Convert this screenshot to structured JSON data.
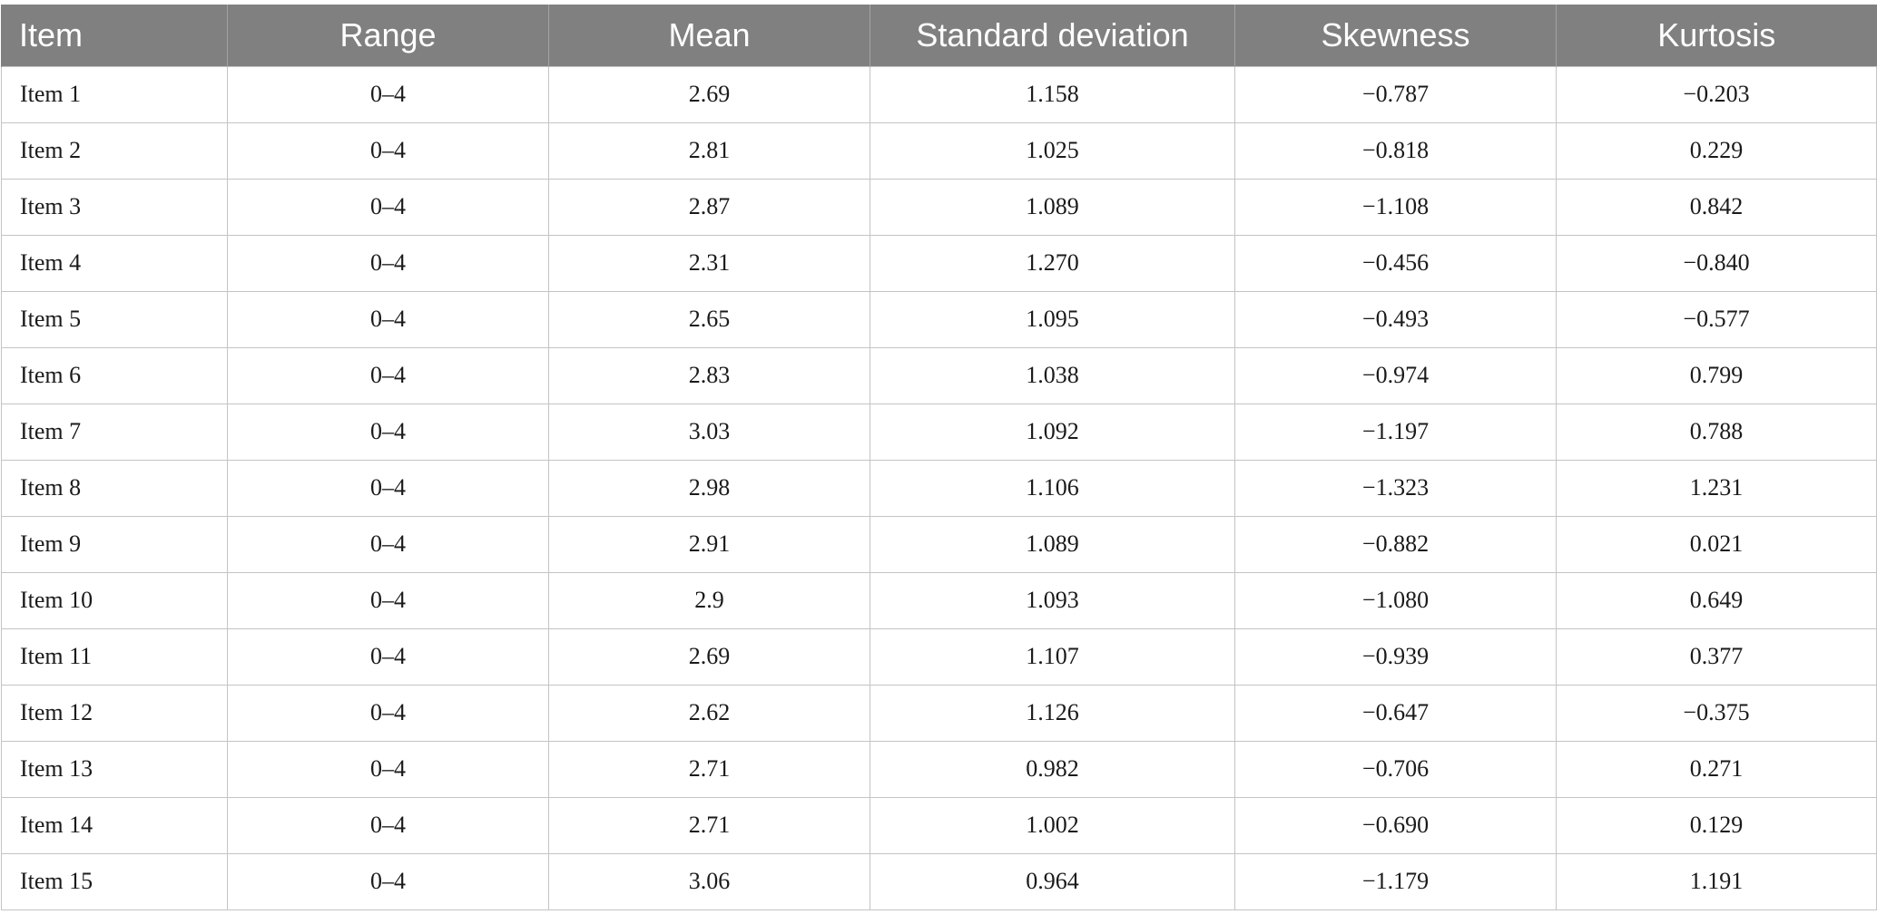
{
  "table": {
    "headers": [
      "Item",
      "Range",
      "Mean",
      "Standard deviation",
      "Skewness",
      "Kurtosis"
    ],
    "rows": [
      [
        "Item 1",
        "0–4",
        "2.69",
        "1.158",
        "−0.787",
        "−0.203"
      ],
      [
        "Item 2",
        "0–4",
        "2.81",
        "1.025",
        "−0.818",
        "0.229"
      ],
      [
        "Item 3",
        "0–4",
        "2.87",
        "1.089",
        "−1.108",
        "0.842"
      ],
      [
        "Item 4",
        "0–4",
        "2.31",
        "1.270",
        "−0.456",
        "−0.840"
      ],
      [
        "Item 5",
        "0–4",
        "2.65",
        "1.095",
        "−0.493",
        "−0.577"
      ],
      [
        "Item 6",
        "0–4",
        "2.83",
        "1.038",
        "−0.974",
        "0.799"
      ],
      [
        "Item 7",
        "0–4",
        "3.03",
        "1.092",
        "−1.197",
        "0.788"
      ],
      [
        "Item 8",
        "0–4",
        "2.98",
        "1.106",
        "−1.323",
        "1.231"
      ],
      [
        "Item 9",
        "0–4",
        "2.91",
        "1.089",
        "−0.882",
        "0.021"
      ],
      [
        "Item 10",
        "0–4",
        "2.9",
        "1.093",
        "−1.080",
        "0.649"
      ],
      [
        "Item 11",
        "0–4",
        "2.69",
        "1.107",
        "−0.939",
        "0.377"
      ],
      [
        "Item 12",
        "0–4",
        "2.62",
        "1.126",
        "−0.647",
        "−0.375"
      ],
      [
        "Item 13",
        "0–4",
        "2.71",
        "0.982",
        "−0.706",
        "0.271"
      ],
      [
        "Item 14",
        "0–4",
        "2.71",
        "1.002",
        "−0.690",
        "0.129"
      ],
      [
        "Item 15",
        "0–4",
        "3.06",
        "0.964",
        "−1.179",
        "1.191"
      ]
    ]
  }
}
